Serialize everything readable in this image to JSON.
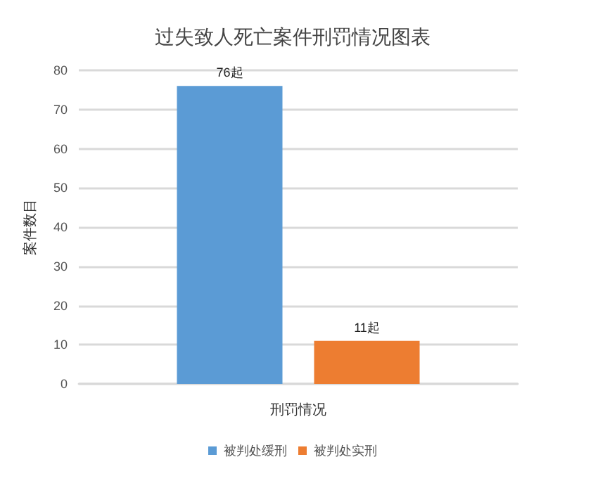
{
  "chart_data": {
    "type": "bar",
    "title": "过失致人死亡案件刑罚情况图表",
    "xlabel": "刑罚情况",
    "ylabel": "案件数目",
    "categories": [
      null
    ],
    "series": [
      {
        "name": "被判处缓刑",
        "color": "#5b9bd5",
        "values": [
          76
        ],
        "value_labels": [
          "76起"
        ]
      },
      {
        "name": "被判处实刑",
        "color": "#ed7d31",
        "values": [
          11
        ],
        "value_labels": [
          "11起"
        ]
      }
    ],
    "ylim": [
      0,
      80
    ],
    "yticks": [
      0,
      10,
      20,
      30,
      40,
      50,
      60,
      70,
      80
    ],
    "grid": "y",
    "legend": "bottom"
  }
}
